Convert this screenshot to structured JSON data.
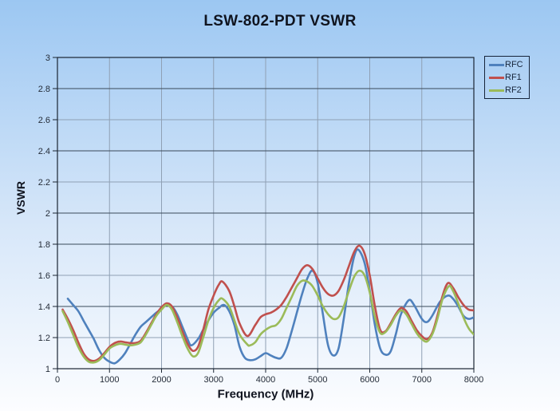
{
  "title": "LSW-802-PDT VSWR",
  "background": {
    "top": "#9cc7f2",
    "mid": "#d7e7f9",
    "bottom": "#fcfdff"
  },
  "axis_color": "#1a2532",
  "grid_minor_color": "#8fa0b4",
  "grid_major_color": "#3a4a5a",
  "tick_text_color": "#242c38",
  "chart_data": {
    "type": "line",
    "title": "LSW-802-PDT VSWR",
    "xlabel": "Frequency (MHz)",
    "ylabel": "VSWR",
    "xlim": [
      0,
      8000
    ],
    "ylim": [
      1,
      3
    ],
    "grid": true,
    "legend_position": "top-right-outside",
    "x_ticks": [
      0,
      1000,
      2000,
      3000,
      4000,
      5000,
      6000,
      7000,
      8000
    ],
    "x_tick_labels": [
      "0",
      "1000",
      "2000",
      "3000",
      "4000",
      "5000",
      "6000",
      "7000",
      "8000"
    ],
    "y_ticks": [
      1,
      1.2,
      1.4,
      1.6,
      1.8,
      2,
      2.2,
      2.4,
      2.6,
      2.8,
      3
    ],
    "y_tick_labels": [
      "1",
      "1.2",
      "1.4",
      "1.6",
      "1.8",
      "2",
      "2.2",
      "2.4",
      "2.6",
      "2.8",
      "3"
    ],
    "y_dark_gridlines": [
      1.4,
      1.8,
      2.0,
      2.4,
      2.8
    ],
    "series": [
      {
        "name": "RFC",
        "color": "#4f81bd",
        "points": [
          [
            200,
            1.45
          ],
          [
            300,
            1.41
          ],
          [
            400,
            1.37
          ],
          [
            500,
            1.31
          ],
          [
            600,
            1.25
          ],
          [
            700,
            1.19
          ],
          [
            800,
            1.12
          ],
          [
            900,
            1.07
          ],
          [
            1000,
            1.045
          ],
          [
            1100,
            1.035
          ],
          [
            1200,
            1.06
          ],
          [
            1300,
            1.1
          ],
          [
            1400,
            1.16
          ],
          [
            1500,
            1.22
          ],
          [
            1600,
            1.27
          ],
          [
            1700,
            1.3
          ],
          [
            1800,
            1.33
          ],
          [
            1900,
            1.36
          ],
          [
            2000,
            1.385
          ],
          [
            2100,
            1.41
          ],
          [
            2200,
            1.4
          ],
          [
            2300,
            1.35
          ],
          [
            2400,
            1.27
          ],
          [
            2500,
            1.19
          ],
          [
            2570,
            1.15
          ],
          [
            2700,
            1.19
          ],
          [
            2800,
            1.25
          ],
          [
            2900,
            1.31
          ],
          [
            3000,
            1.36
          ],
          [
            3100,
            1.39
          ],
          [
            3200,
            1.41
          ],
          [
            3300,
            1.37
          ],
          [
            3400,
            1.28
          ],
          [
            3500,
            1.14
          ],
          [
            3600,
            1.07
          ],
          [
            3700,
            1.055
          ],
          [
            3800,
            1.06
          ],
          [
            3900,
            1.08
          ],
          [
            4000,
            1.1
          ],
          [
            4100,
            1.085
          ],
          [
            4200,
            1.07
          ],
          [
            4300,
            1.07
          ],
          [
            4400,
            1.13
          ],
          [
            4500,
            1.24
          ],
          [
            4600,
            1.36
          ],
          [
            4700,
            1.48
          ],
          [
            4800,
            1.58
          ],
          [
            4900,
            1.63
          ],
          [
            5000,
            1.55
          ],
          [
            5100,
            1.35
          ],
          [
            5200,
            1.15
          ],
          [
            5300,
            1.085
          ],
          [
            5400,
            1.13
          ],
          [
            5500,
            1.32
          ],
          [
            5600,
            1.55
          ],
          [
            5700,
            1.72
          ],
          [
            5780,
            1.765
          ],
          [
            5900,
            1.68
          ],
          [
            6000,
            1.5
          ],
          [
            6100,
            1.28
          ],
          [
            6200,
            1.13
          ],
          [
            6300,
            1.09
          ],
          [
            6400,
            1.11
          ],
          [
            6500,
            1.22
          ],
          [
            6600,
            1.35
          ],
          [
            6750,
            1.44
          ],
          [
            6850,
            1.41
          ],
          [
            7000,
            1.32
          ],
          [
            7100,
            1.3
          ],
          [
            7200,
            1.34
          ],
          [
            7350,
            1.43
          ],
          [
            7500,
            1.47
          ],
          [
            7600,
            1.45
          ],
          [
            7700,
            1.4
          ],
          [
            7800,
            1.34
          ],
          [
            7900,
            1.32
          ],
          [
            8000,
            1.33
          ]
        ]
      },
      {
        "name": "RF1",
        "color": "#c0504d",
        "points": [
          [
            100,
            1.38
          ],
          [
            200,
            1.32
          ],
          [
            300,
            1.25
          ],
          [
            400,
            1.17
          ],
          [
            500,
            1.1
          ],
          [
            600,
            1.06
          ],
          [
            700,
            1.05
          ],
          [
            800,
            1.065
          ],
          [
            900,
            1.1
          ],
          [
            1000,
            1.14
          ],
          [
            1100,
            1.165
          ],
          [
            1200,
            1.175
          ],
          [
            1300,
            1.17
          ],
          [
            1400,
            1.165
          ],
          [
            1500,
            1.165
          ],
          [
            1600,
            1.18
          ],
          [
            1700,
            1.23
          ],
          [
            1800,
            1.29
          ],
          [
            1900,
            1.35
          ],
          [
            2000,
            1.395
          ],
          [
            2100,
            1.42
          ],
          [
            2200,
            1.4
          ],
          [
            2300,
            1.33
          ],
          [
            2400,
            1.24
          ],
          [
            2500,
            1.16
          ],
          [
            2600,
            1.115
          ],
          [
            2700,
            1.14
          ],
          [
            2800,
            1.25
          ],
          [
            2900,
            1.38
          ],
          [
            3000,
            1.47
          ],
          [
            3100,
            1.54
          ],
          [
            3170,
            1.56
          ],
          [
            3300,
            1.5
          ],
          [
            3400,
            1.4
          ],
          [
            3500,
            1.29
          ],
          [
            3650,
            1.21
          ],
          [
            3800,
            1.28
          ],
          [
            3900,
            1.33
          ],
          [
            4000,
            1.35
          ],
          [
            4100,
            1.36
          ],
          [
            4200,
            1.38
          ],
          [
            4300,
            1.41
          ],
          [
            4400,
            1.46
          ],
          [
            4500,
            1.52
          ],
          [
            4600,
            1.58
          ],
          [
            4700,
            1.64
          ],
          [
            4800,
            1.665
          ],
          [
            4900,
            1.64
          ],
          [
            5000,
            1.58
          ],
          [
            5100,
            1.52
          ],
          [
            5200,
            1.48
          ],
          [
            5300,
            1.47
          ],
          [
            5400,
            1.5
          ],
          [
            5500,
            1.57
          ],
          [
            5600,
            1.66
          ],
          [
            5700,
            1.75
          ],
          [
            5800,
            1.79
          ],
          [
            5900,
            1.74
          ],
          [
            6000,
            1.6
          ],
          [
            6100,
            1.4
          ],
          [
            6200,
            1.25
          ],
          [
            6300,
            1.24
          ],
          [
            6400,
            1.29
          ],
          [
            6500,
            1.35
          ],
          [
            6600,
            1.39
          ],
          [
            6700,
            1.37
          ],
          [
            6800,
            1.31
          ],
          [
            6900,
            1.25
          ],
          [
            7000,
            1.21
          ],
          [
            7100,
            1.19
          ],
          [
            7200,
            1.23
          ],
          [
            7300,
            1.34
          ],
          [
            7400,
            1.47
          ],
          [
            7500,
            1.55
          ],
          [
            7600,
            1.52
          ],
          [
            7700,
            1.46
          ],
          [
            7800,
            1.41
          ],
          [
            7900,
            1.38
          ],
          [
            8000,
            1.375
          ]
        ]
      },
      {
        "name": "RF2",
        "color": "#9bbb59",
        "points": [
          [
            100,
            1.37
          ],
          [
            200,
            1.3
          ],
          [
            300,
            1.22
          ],
          [
            400,
            1.14
          ],
          [
            500,
            1.08
          ],
          [
            600,
            1.045
          ],
          [
            700,
            1.04
          ],
          [
            800,
            1.055
          ],
          [
            900,
            1.09
          ],
          [
            1000,
            1.13
          ],
          [
            1100,
            1.15
          ],
          [
            1200,
            1.16
          ],
          [
            1300,
            1.155
          ],
          [
            1400,
            1.15
          ],
          [
            1500,
            1.155
          ],
          [
            1600,
            1.17
          ],
          [
            1700,
            1.22
          ],
          [
            1800,
            1.28
          ],
          [
            1900,
            1.34
          ],
          [
            2000,
            1.38
          ],
          [
            2100,
            1.41
          ],
          [
            2200,
            1.38
          ],
          [
            2300,
            1.3
          ],
          [
            2400,
            1.21
          ],
          [
            2500,
            1.13
          ],
          [
            2600,
            1.08
          ],
          [
            2700,
            1.1
          ],
          [
            2800,
            1.2
          ],
          [
            2900,
            1.31
          ],
          [
            3000,
            1.39
          ],
          [
            3100,
            1.44
          ],
          [
            3170,
            1.45
          ],
          [
            3300,
            1.4
          ],
          [
            3400,
            1.31
          ],
          [
            3500,
            1.22
          ],
          [
            3650,
            1.155
          ],
          [
            3700,
            1.15
          ],
          [
            3800,
            1.17
          ],
          [
            3900,
            1.22
          ],
          [
            4000,
            1.25
          ],
          [
            4100,
            1.27
          ],
          [
            4200,
            1.28
          ],
          [
            4300,
            1.32
          ],
          [
            4400,
            1.39
          ],
          [
            4500,
            1.46
          ],
          [
            4600,
            1.53
          ],
          [
            4700,
            1.565
          ],
          [
            4800,
            1.56
          ],
          [
            4900,
            1.53
          ],
          [
            5000,
            1.47
          ],
          [
            5100,
            1.4
          ],
          [
            5200,
            1.35
          ],
          [
            5300,
            1.32
          ],
          [
            5400,
            1.33
          ],
          [
            5500,
            1.4
          ],
          [
            5600,
            1.5
          ],
          [
            5700,
            1.59
          ],
          [
            5800,
            1.63
          ],
          [
            5900,
            1.6
          ],
          [
            6000,
            1.49
          ],
          [
            6100,
            1.33
          ],
          [
            6200,
            1.23
          ],
          [
            6300,
            1.235
          ],
          [
            6400,
            1.28
          ],
          [
            6500,
            1.34
          ],
          [
            6600,
            1.375
          ],
          [
            6700,
            1.35
          ],
          [
            6800,
            1.29
          ],
          [
            6900,
            1.23
          ],
          [
            7000,
            1.19
          ],
          [
            7100,
            1.175
          ],
          [
            7200,
            1.22
          ],
          [
            7300,
            1.32
          ],
          [
            7400,
            1.45
          ],
          [
            7520,
            1.53
          ],
          [
            7600,
            1.5
          ],
          [
            7700,
            1.42
          ],
          [
            7800,
            1.33
          ],
          [
            7900,
            1.26
          ],
          [
            8000,
            1.22
          ]
        ]
      }
    ]
  },
  "legend": {
    "items": [
      "RFC",
      "RF1",
      "RF2"
    ]
  }
}
